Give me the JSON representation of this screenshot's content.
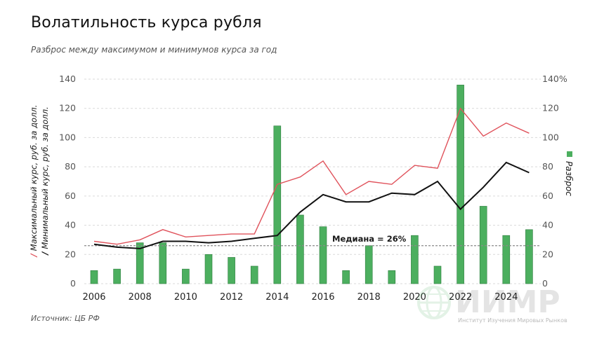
{
  "title": "Волатильность курса рубля",
  "subtitle": "Разброс между максимумом и минимумов курса за год",
  "source": "Источник: ЦБ РФ",
  "logo": {
    "brand": "ИИМР",
    "caption": "Институт Изучения Мировых Рынков"
  },
  "colors": {
    "bars": "#4caf5f",
    "max_line": "#e0535c",
    "min_line": "#111111",
    "median": "#8a8a8a",
    "grid": "#d9d9d9"
  },
  "chart_data": {
    "type": "bar+line",
    "years": [
      2006,
      2007,
      2008,
      2009,
      2010,
      2011,
      2012,
      2013,
      2014,
      2015,
      2016,
      2017,
      2018,
      2019,
      2020,
      2021,
      2022,
      2023,
      2024,
      2025
    ],
    "x_tick_labels": [
      "2006",
      "2008",
      "2010",
      "2012",
      "2014",
      "2016",
      "2018",
      "2020",
      "2022",
      "2024"
    ],
    "y_left": {
      "ticks": [
        "0",
        "20",
        "40",
        "60",
        "80",
        "100",
        "120",
        "140"
      ],
      "range": [
        0,
        140
      ],
      "label_max": "Максимальный курс, руб. за долл.",
      "label_min": "Минимальный курс, руб. за долл."
    },
    "y_right": {
      "ticks": [
        "0",
        "20",
        "40",
        "60",
        "80",
        "100",
        "120",
        "140%"
      ],
      "range": [
        0,
        140
      ],
      "label": "Разброс"
    },
    "series": [
      {
        "name": "Максимальный курс, руб. за долл.",
        "type": "line",
        "axis": "left",
        "values": [
          29,
          27,
          30,
          37,
          32,
          33,
          34,
          34,
          68,
          73,
          84,
          61,
          70,
          68,
          81,
          79,
          120,
          101,
          110,
          103
        ]
      },
      {
        "name": "Минимальный курс, руб. за долл.",
        "type": "line",
        "axis": "left",
        "values": [
          27,
          25,
          24,
          29,
          29,
          28,
          29,
          31,
          33,
          49,
          61,
          56,
          56,
          62,
          61,
          70,
          51,
          66,
          83,
          76
        ]
      },
      {
        "name": "Разброс",
        "type": "bar",
        "axis": "right",
        "values": [
          9,
          10,
          28,
          28,
          10,
          20,
          18,
          12,
          108,
          47,
          39,
          9,
          26,
          9,
          33,
          12,
          136,
          53,
          33,
          37
        ]
      }
    ],
    "median": {
      "value": 26,
      "label": "Медиана = 26%"
    },
    "grid": true
  }
}
